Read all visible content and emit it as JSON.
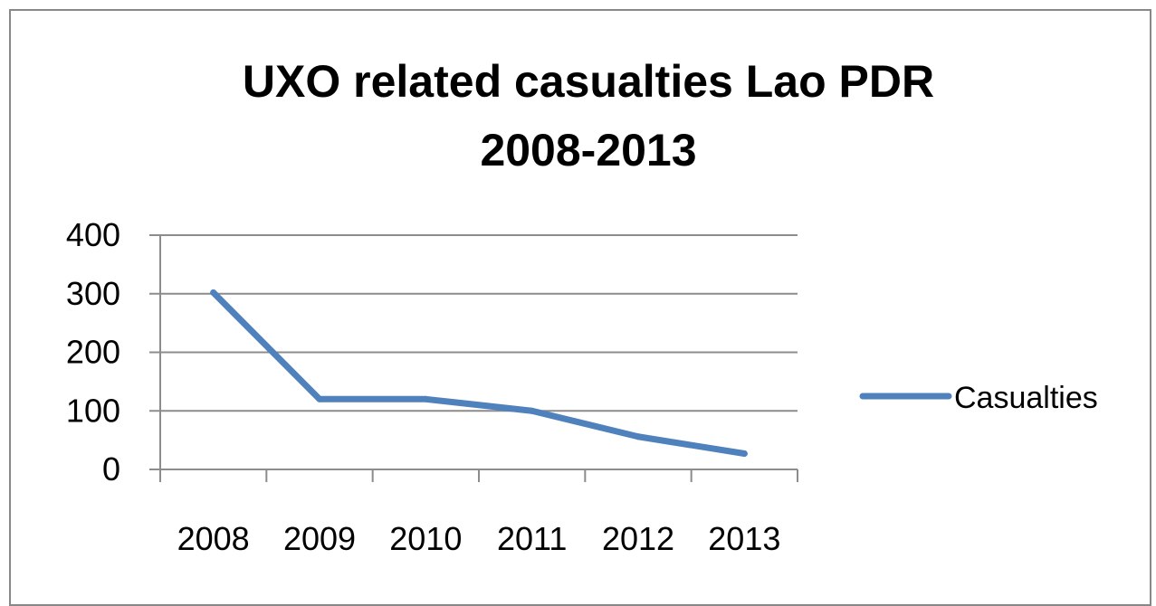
{
  "chart_data": {
    "type": "line",
    "title_lines": [
      "UXO related casualties Lao PDR",
      "2008-2013"
    ],
    "categories": [
      "2008",
      "2009",
      "2010",
      "2011",
      "2012",
      "2013"
    ],
    "series": [
      {
        "name": "Casualties",
        "values": [
          302,
          120,
          120,
          100,
          56,
          27
        ]
      }
    ],
    "ylim": [
      0,
      400
    ],
    "yticks": [
      "0",
      "100",
      "200",
      "300",
      "400"
    ],
    "grid": true,
    "legend": "right",
    "colors": {
      "series": "#4f81bd",
      "grid": "#8c8c8c",
      "axis": "#8c8c8c"
    }
  }
}
